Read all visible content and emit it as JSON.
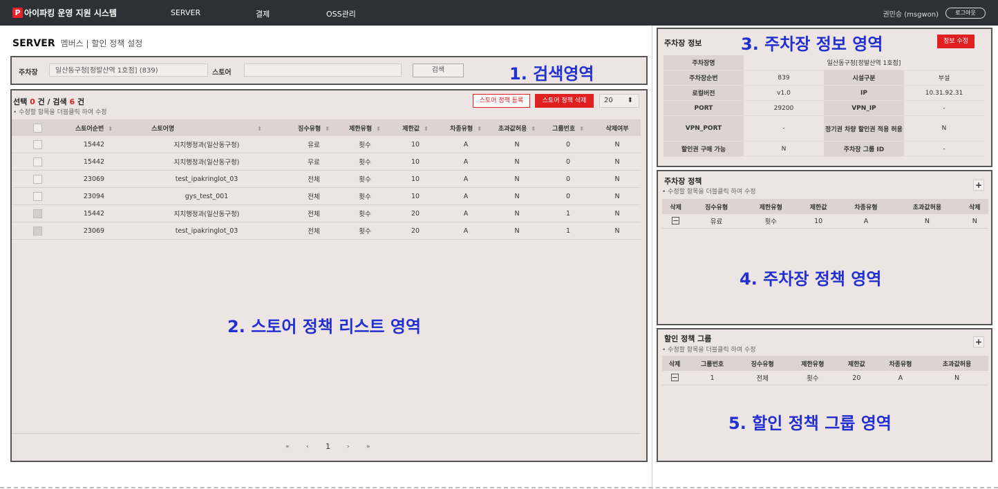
{
  "topbar": {
    "logo_letter": "P",
    "app_title": "아이파킹 운영 지원 시스템",
    "nav": [
      "SERVER",
      "결제",
      "OSS관리"
    ],
    "user": "권민승 (msgwon)",
    "logout": "로그아웃"
  },
  "page": {
    "heading_main": "SERVER",
    "heading_sub": "멤버스 | 할인 정책 설정"
  },
  "search": {
    "parking_label": "주차장",
    "parking_value": "일산동구청[정발산역 1호점] (839)",
    "store_label": "스토어",
    "store_value": "",
    "search_button": "검색",
    "annotation": "1. 검색영역"
  },
  "list": {
    "count_prefix": "선택",
    "selected": "0",
    "count_mid": "건 / 검색",
    "found": "6",
    "count_suffix": "건",
    "hint": "• 수정할 항목을 더블클릭 하여 수정",
    "register_button": "스토어 정책 등록",
    "delete_button": "스토어 정책 삭제",
    "page_size": "20",
    "columns": [
      "스토어순번",
      "스토어명",
      "징수유형",
      "제한유형",
      "제한값",
      "차종유형",
      "초과값허용",
      "그룹번호",
      "삭제여부"
    ],
    "rows": [
      [
        "15442",
        "지치행정과(일산동구청)",
        "유료",
        "횟수",
        "10",
        "A",
        "N",
        "0",
        "N"
      ],
      [
        "15442",
        "지치행정과(일산동구청)",
        "무료",
        "횟수",
        "10",
        "A",
        "N",
        "0",
        "N"
      ],
      [
        "23069",
        "test_ipakringlot_03",
        "전체",
        "횟수",
        "10",
        "A",
        "N",
        "0",
        "N"
      ],
      [
        "23094",
        "gys_test_001",
        "전체",
        "횟수",
        "10",
        "A",
        "N",
        "0",
        "N"
      ],
      [
        "15442",
        "지치행정과(일산동구청)",
        "전체",
        "횟수",
        "20",
        "A",
        "N",
        "1",
        "N"
      ],
      [
        "23069",
        "test_ipakringlot_03",
        "전체",
        "횟수",
        "20",
        "A",
        "N",
        "1",
        "N"
      ]
    ],
    "pager": {
      "first": "«",
      "prev": "‹",
      "page": "1",
      "next": "›",
      "last": "»"
    },
    "annotation": "2. 스토어 정책 리스트 영역"
  },
  "info": {
    "title": "주차장 정보",
    "annotation": "3. 주차장 정보 영역",
    "edit_button": "정보 수정",
    "name_label": "주차장명",
    "name_value": "일산동구청[정발산역 1호점]",
    "rows": [
      [
        "주차장순번",
        "839",
        "시설구분",
        "부설"
      ],
      [
        "로컬버전",
        "v1.0",
        "IP",
        "10.31.92.31"
      ],
      [
        "PORT",
        "29200",
        "VPN_IP",
        "-"
      ],
      [
        "VPN_PORT",
        "-",
        "정기권 차량 할인권 적용 허용",
        "N"
      ],
      [
        "할인권 구매 가능",
        "N",
        "주차장 그룹 ID",
        "-"
      ]
    ]
  },
  "parking_policy": {
    "title": "주차장 정책",
    "hint": "• 수정할 항목을 더블클릭 하여 수정",
    "plus": "+",
    "columns": [
      "삭제",
      "징수유형",
      "제한유형",
      "제한값",
      "차종유형",
      "초과값허용",
      "삭제"
    ],
    "rows": [
      [
        "−",
        "유료",
        "횟수",
        "10",
        "A",
        "N",
        "N"
      ]
    ],
    "annotation": "4. 주차장 정책 영역"
  },
  "discount_group": {
    "title": "할인 정책 그룹",
    "hint": "• 수정할 항목을 더블클릭 하여 수정",
    "plus": "+",
    "columns": [
      "삭제",
      "그룹번호",
      "징수유형",
      "제한유형",
      "제한값",
      "차종유형",
      "초과값허용"
    ],
    "rows": [
      [
        "−",
        "1",
        "전체",
        "횟수",
        "20",
        "A",
        "N"
      ]
    ],
    "annotation": "5. 할인 정책 그룹 영역"
  },
  "colors": {
    "accent_red": "#e02020",
    "annotation_blue": "#2230d0",
    "topbar": "#2d3035",
    "panel_bg": "#ede4e4"
  }
}
